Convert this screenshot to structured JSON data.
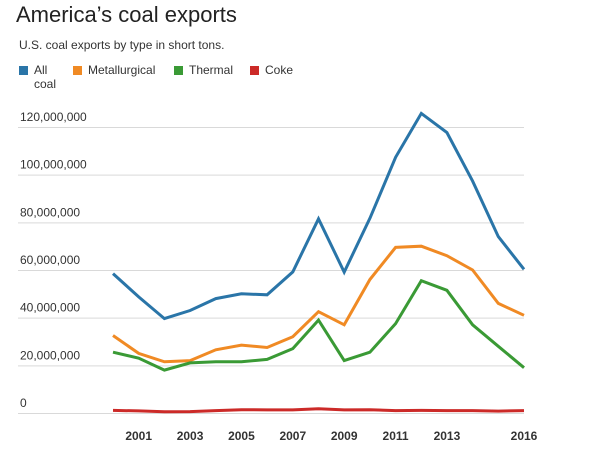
{
  "header": {
    "title": "America’s coal exports",
    "subtitle": "U.S. coal exports by type in short tons."
  },
  "legend": [
    {
      "label": "All coal",
      "color": "#2a75a8"
    },
    {
      "label": "Metallurgical",
      "color": "#f08a24"
    },
    {
      "label": "Thermal",
      "color": "#3a9a35"
    },
    {
      "label": "Coke",
      "color": "#cc2a28"
    }
  ],
  "chart_data": {
    "type": "line",
    "x": [
      2000,
      2001,
      2002,
      2003,
      2004,
      2005,
      2006,
      2007,
      2008,
      2009,
      2010,
      2011,
      2012,
      2013,
      2014,
      2015,
      2016
    ],
    "xticks": [
      "2001",
      "2003",
      "2005",
      "2007",
      "2009",
      "2011",
      "2013",
      "2016"
    ],
    "xtick_values": [
      2001,
      2003,
      2005,
      2007,
      2009,
      2011,
      2013,
      2016
    ],
    "yticks": [
      "0",
      "20,000,000",
      "40,000,000",
      "60,000,000",
      "80,000,000",
      "100,000,000",
      "120,000,000"
    ],
    "ytick_values": [
      0,
      20000000,
      40000000,
      60000000,
      80000000,
      100000000,
      120000000
    ],
    "ylim": [
      0,
      120000000
    ],
    "grid": true,
    "legend_position": "top-left",
    "series": [
      {
        "name": "All coal",
        "color": "#2a75a8",
        "values": [
          58500000,
          48700000,
          39600000,
          43000000,
          48000000,
          50000000,
          49600000,
          59200000,
          81500000,
          59100000,
          81700000,
          107300000,
          125700000,
          117700000,
          97300000,
          74000000,
          60300000
        ]
      },
      {
        "name": "Metallurgical",
        "color": "#f08a24",
        "values": [
          32500000,
          25000000,
          21500000,
          22000000,
          26500000,
          28500000,
          27500000,
          32000000,
          42500000,
          37000000,
          56000000,
          69500000,
          70000000,
          66000000,
          60000000,
          46000000,
          41000000
        ]
      },
      {
        "name": "Thermal",
        "color": "#3a9a35",
        "values": [
          25500000,
          23000000,
          18000000,
          21000000,
          21500000,
          21500000,
          22500000,
          27000000,
          39000000,
          22000000,
          25500000,
          37500000,
          55500000,
          51500000,
          37000000,
          28000000,
          19000000
        ]
      },
      {
        "name": "Coke",
        "color": "#cc2a28",
        "values": [
          1100000,
          900000,
          500000,
          600000,
          1000000,
          1400000,
          1300000,
          1300000,
          1800000,
          1300000,
          1400000,
          1000000,
          1100000,
          1000000,
          1000000,
          800000,
          1000000
        ]
      }
    ]
  }
}
